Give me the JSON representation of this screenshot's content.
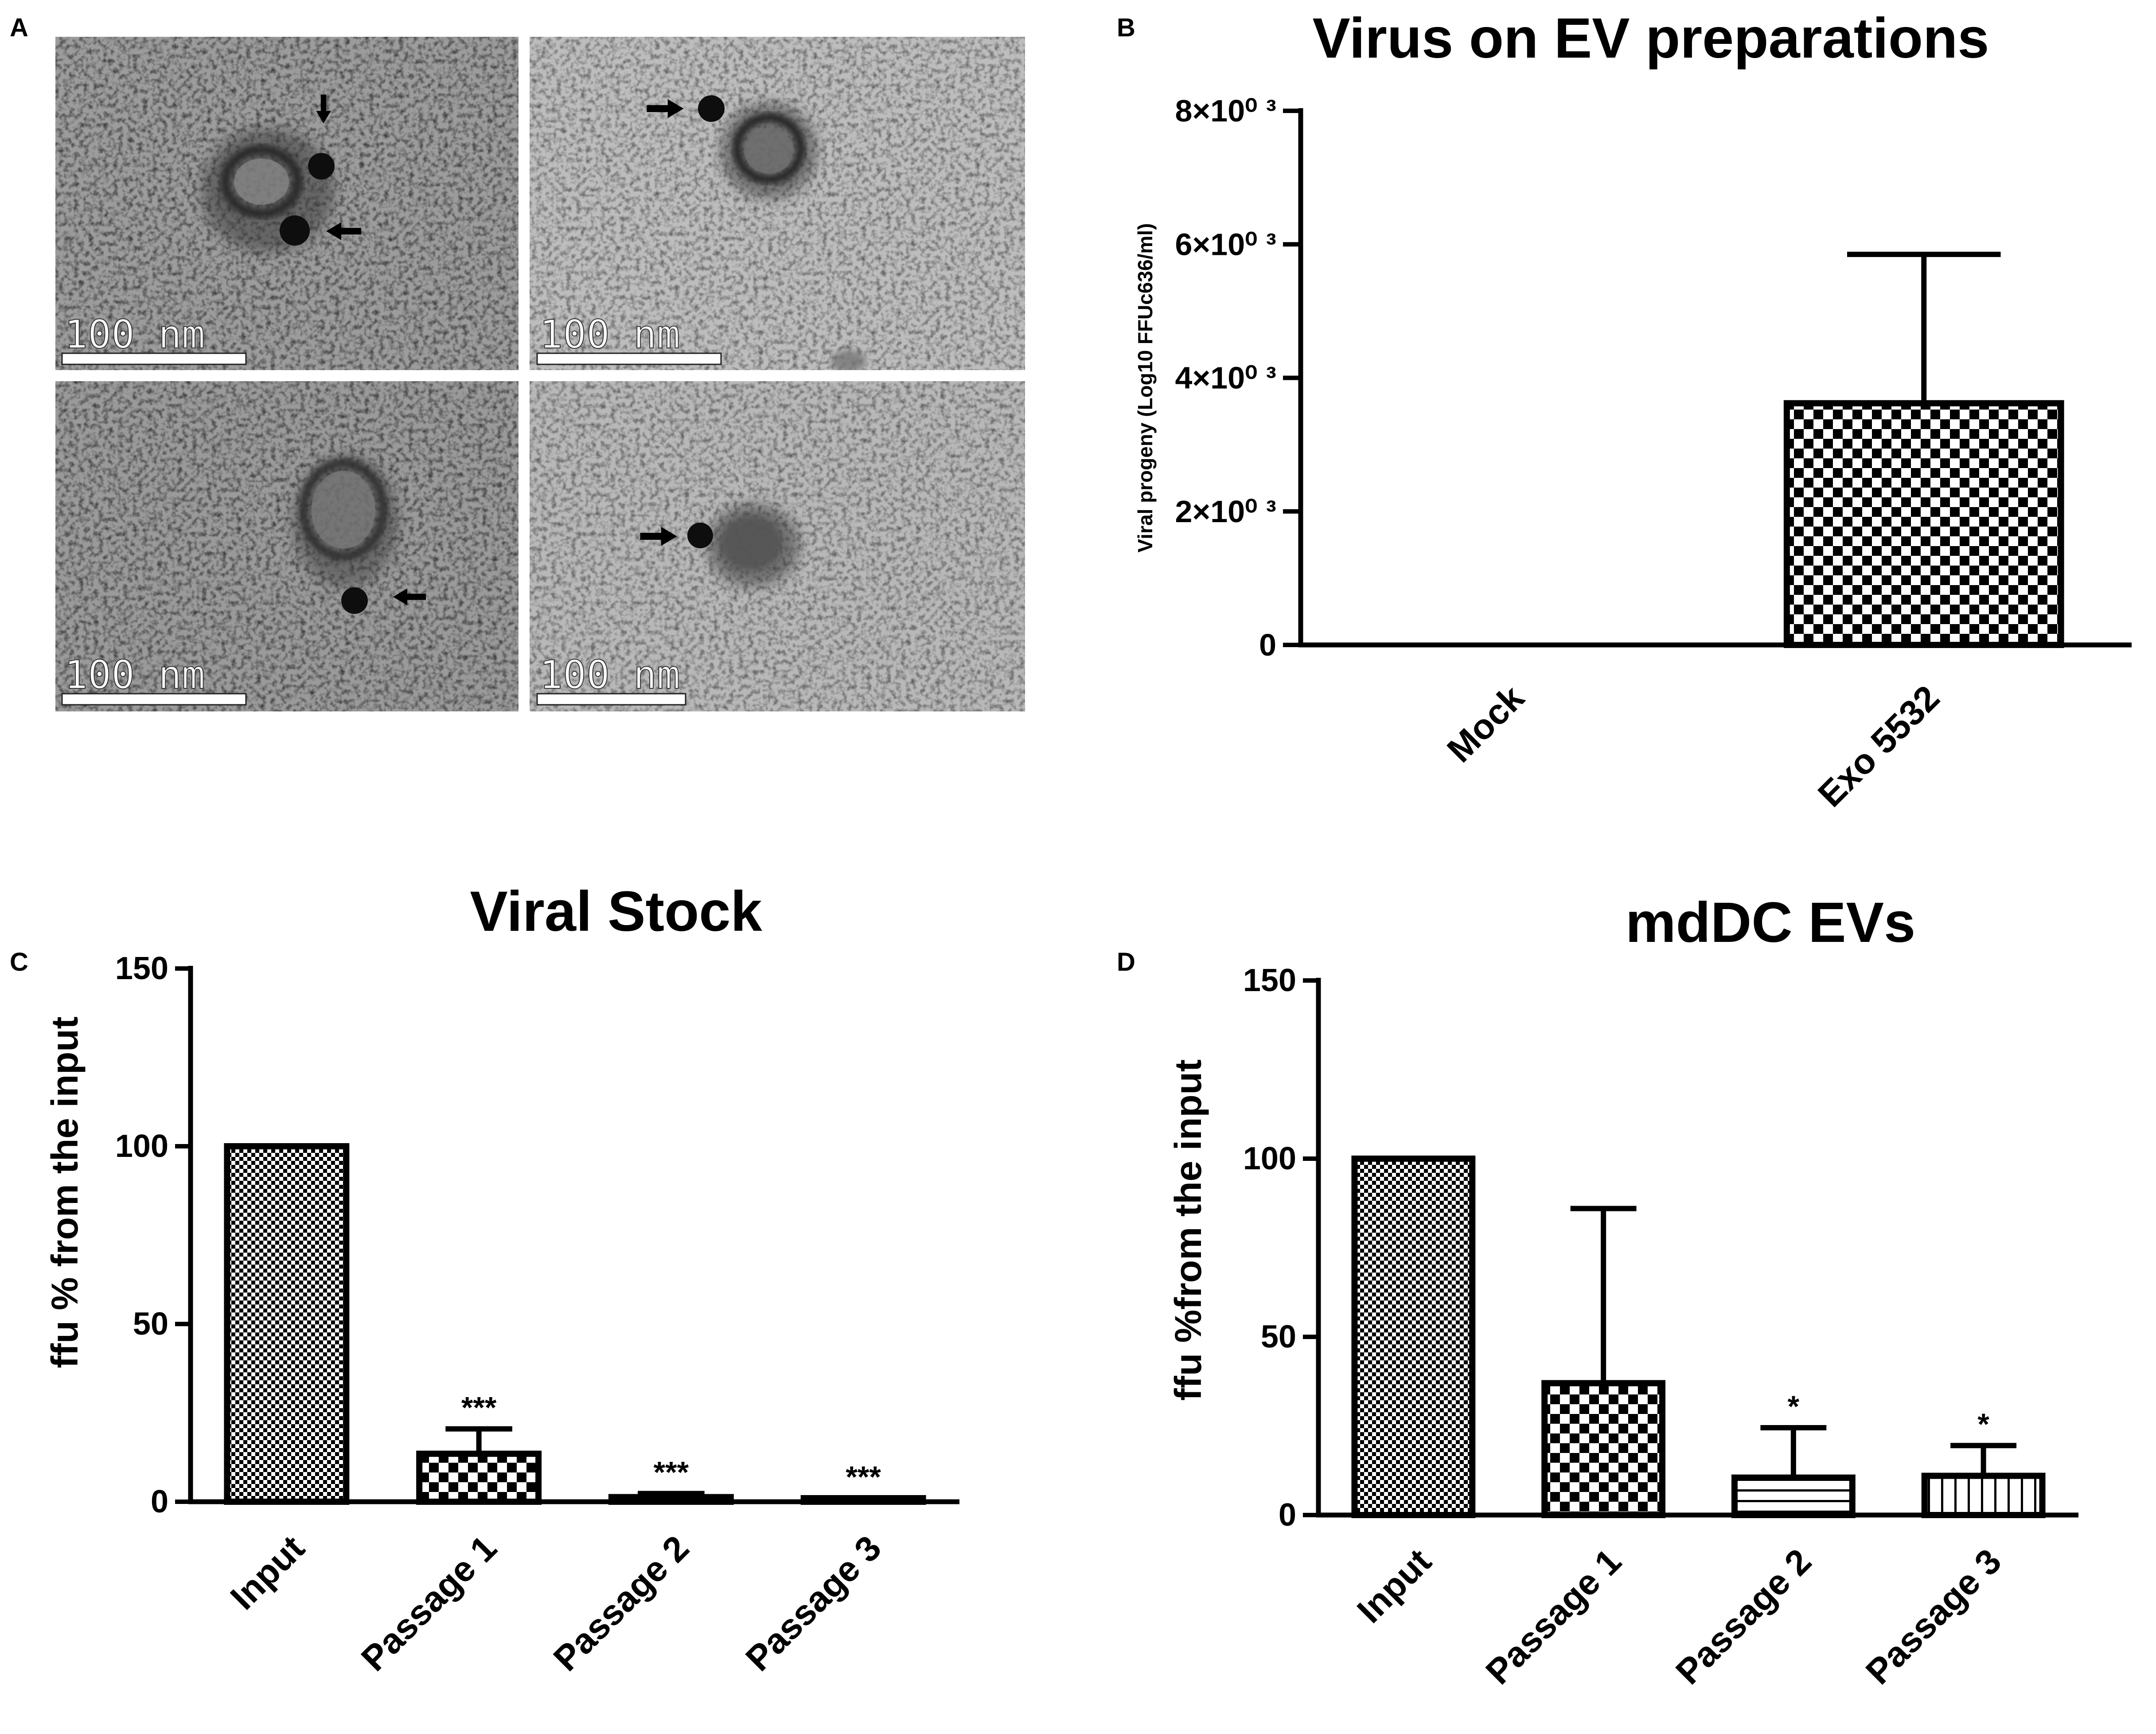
{
  "panel_labels": [
    "A",
    "B",
    "C",
    "D"
  ],
  "micrographs": {
    "scale_bar_label": "100 nm",
    "images": [
      {
        "id": "top-left",
        "arrows": 2
      },
      {
        "id": "top-right",
        "arrows": 1
      },
      {
        "id": "bottom-left",
        "arrows": 1
      },
      {
        "id": "bottom-right",
        "arrows": 1
      }
    ]
  },
  "chart_data": [
    {
      "panel": "B",
      "type": "bar",
      "title": "Virus on EV preparations",
      "ylabel": "Viral progeny (Log10 FFUc636/ml)",
      "xlabel": "",
      "categories": [
        "Mock",
        "Exo 5532"
      ],
      "values": [
        0,
        3620
      ],
      "errors": [
        0,
        2230
      ],
      "patterns": [
        "checker",
        "checker"
      ],
      "ylim": [
        0,
        8000
      ],
      "yticks": [
        0,
        2000,
        4000,
        6000,
        8000
      ],
      "yticklabels": [
        "0",
        "2×10⁰ ³",
        "4×10⁰ ³",
        "6×10⁰ ³",
        "8×10⁰ ³"
      ],
      "significance": [
        "",
        ""
      ]
    },
    {
      "panel": "C",
      "type": "bar",
      "title": "Viral Stock",
      "ylabel": "ffu %  from the input",
      "xlabel": "",
      "categories": [
        "Input",
        "Passage 1",
        "Passage 2",
        "Passage 3"
      ],
      "values": [
        100,
        13.5,
        1.3,
        0.5
      ],
      "errors": [
        0,
        7,
        1,
        0.5
      ],
      "patterns": [
        "fine-checker",
        "checker",
        "fine-checker",
        "fine-checker"
      ],
      "ylim": [
        0,
        150
      ],
      "yticks": [
        0,
        50,
        100,
        150
      ],
      "yticklabels": [
        "0",
        "50",
        "100",
        "150"
      ],
      "significance": [
        "",
        "***",
        "***",
        "***"
      ]
    },
    {
      "panel": "D",
      "type": "bar",
      "title": "mdDC EVs",
      "ylabel": "ffu %from the input",
      "xlabel": "",
      "categories": [
        "Input",
        "Passage 1",
        "Passage 2",
        "Passage 3"
      ],
      "values": [
        100,
        37,
        10.5,
        11
      ],
      "errors": [
        0,
        49,
        14,
        8.5
      ],
      "patterns": [
        "fine-checker",
        "checker",
        "hlines",
        "vlines"
      ],
      "ylim": [
        0,
        150
      ],
      "yticks": [
        0,
        50,
        100,
        150
      ],
      "yticklabels": [
        "0",
        "50",
        "100",
        "150"
      ],
      "significance": [
        "",
        "",
        "*",
        "*"
      ]
    }
  ]
}
